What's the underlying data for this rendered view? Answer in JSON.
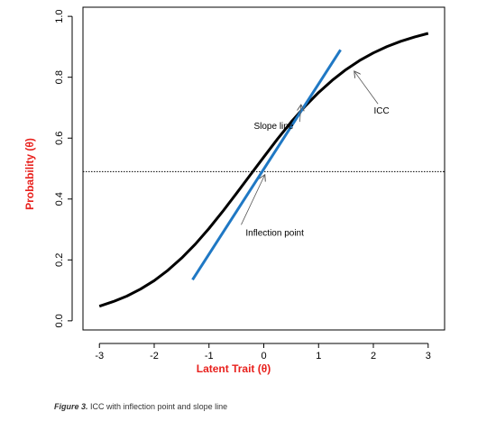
{
  "chart_data": {
    "type": "line",
    "title": "",
    "xlabel": "Latent Trait (θ)",
    "ylabel": "Probability (θ)",
    "xlim": [
      -3.3,
      3.3
    ],
    "ylim": [
      -0.03,
      1.03
    ],
    "x_ticks": [
      "-3",
      "-2",
      "-1",
      "0",
      "1",
      "2",
      "3"
    ],
    "y_ticks": [
      "0.0",
      "0.2",
      "0.4",
      "0.6",
      "0.8",
      "1.0"
    ],
    "grid": false,
    "series": [
      {
        "name": "ICC",
        "color": "#000000",
        "x": [
          -3.0,
          -2.75,
          -2.5,
          -2.25,
          -2.0,
          -1.75,
          -1.5,
          -1.25,
          -1.0,
          -0.75,
          -0.5,
          -0.25,
          0.0,
          0.25,
          0.5,
          0.75,
          1.0,
          1.25,
          1.5,
          1.75,
          2.0,
          2.25,
          2.5,
          2.75,
          3.0
        ],
        "values": [
          0.048,
          0.063,
          0.081,
          0.104,
          0.132,
          0.166,
          0.206,
          0.252,
          0.303,
          0.359,
          0.418,
          0.478,
          0.538,
          0.597,
          0.653,
          0.704,
          0.75,
          0.79,
          0.825,
          0.855,
          0.88,
          0.901,
          0.918,
          0.932,
          0.944
        ]
      },
      {
        "name": "Slope line",
        "color": "#1f78c4",
        "x": [
          -1.3,
          1.4
        ],
        "values": [
          0.135,
          0.89
        ]
      }
    ],
    "reference_lines": [
      {
        "orientation": "horizontal",
        "y": 0.49,
        "style": "dotted",
        "color": "#000000"
      }
    ],
    "annotations": [
      {
        "text": "Slope line",
        "x": 0.18,
        "y": 0.63,
        "arrow_to": [
          0.68,
          0.71
        ]
      },
      {
        "text": "ICC",
        "x": 2.15,
        "y": 0.68,
        "arrow_to": [
          1.65,
          0.82
        ]
      },
      {
        "text": "Inflection point",
        "x": 0.2,
        "y": 0.28,
        "arrow_to": [
          0.02,
          0.48
        ]
      }
    ]
  },
  "caption": {
    "label": "Figure 3.",
    "text": " ICC with inflection point and slope line"
  },
  "colors": {
    "axis_title": "#e8211d",
    "icc": "#000000",
    "slope": "#1f78c4"
  }
}
